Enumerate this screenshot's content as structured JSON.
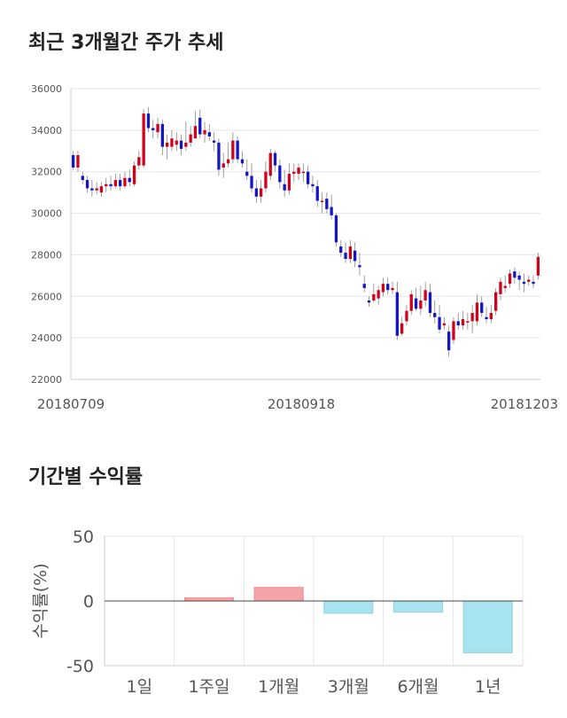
{
  "titles": {
    "price_trend": "최근 3개월간 주가 추세",
    "period_return": "기간별 수익률"
  },
  "colors": {
    "up": "#d0021b",
    "down": "#1414c8",
    "bar_positive": "#f4a3a8",
    "bar_negative": "#a8e4f0",
    "grid": "#e6e6e6"
  },
  "chart_data": [
    {
      "type": "candlestick",
      "title": "최근 3개월간 주가 추세",
      "ylim": [
        22000,
        36000
      ],
      "y_ticks": [
        "36000",
        "34000",
        "32000",
        "30000",
        "28000",
        "26000",
        "24000",
        "22000"
      ],
      "x_tick_labels": [
        "20180709",
        "20180918",
        "20181203"
      ],
      "grid": true,
      "candles": [
        [
          32800,
          32200,
          33000,
          32100
        ],
        [
          32200,
          32800,
          33000,
          32000
        ],
        [
          31800,
          31600,
          32000,
          31400
        ],
        [
          31600,
          31200,
          31800,
          31000
        ],
        [
          31200,
          31100,
          31600,
          30800
        ],
        [
          31100,
          31200,
          31500,
          30900
        ],
        [
          31000,
          31300,
          31500,
          30800
        ],
        [
          31300,
          31400,
          31700,
          31000
        ],
        [
          31400,
          31300,
          31800,
          31100
        ],
        [
          31300,
          31600,
          31900,
          31200
        ],
        [
          31600,
          31300,
          31900,
          31100
        ],
        [
          31300,
          31700,
          32000,
          31200
        ],
        [
          31700,
          31500,
          32100,
          31300
        ],
        [
          31400,
          32300,
          32500,
          31300
        ],
        [
          32300,
          32700,
          33000,
          32100
        ],
        [
          32300,
          34800,
          35000,
          32200
        ],
        [
          34800,
          34100,
          35100,
          33900
        ],
        [
          34100,
          34000,
          34500,
          33600
        ],
        [
          33900,
          34300,
          34600,
          33600
        ],
        [
          34300,
          33200,
          34500,
          32800
        ],
        [
          33200,
          33400,
          33800,
          32600
        ],
        [
          33200,
          33600,
          34000,
          33000
        ],
        [
          33300,
          33500,
          33900,
          33000
        ],
        [
          33500,
          33100,
          33800,
          32800
        ],
        [
          33200,
          33400,
          34400,
          33000
        ],
        [
          33400,
          33800,
          34200,
          33200
        ],
        [
          33600,
          34200,
          34900,
          33600
        ],
        [
          34600,
          33800,
          35000,
          33600
        ],
        [
          33800,
          34000,
          34400,
          33400
        ],
        [
          33900,
          33700,
          34300,
          33500
        ],
        [
          33500,
          33400,
          33900,
          33000
        ],
        [
          33400,
          32100,
          33600,
          31800
        ],
        [
          32200,
          32400,
          32900,
          31700
        ],
        [
          32400,
          32600,
          33400,
          32200
        ],
        [
          32600,
          33500,
          33900,
          32400
        ],
        [
          33500,
          32600,
          33700,
          32400
        ],
        [
          32600,
          32400,
          33000,
          32200
        ],
        [
          32000,
          31800,
          32600,
          31600
        ],
        [
          31800,
          31200,
          32400,
          31000
        ],
        [
          31200,
          30800,
          31600,
          30500
        ],
        [
          30800,
          31200,
          31600,
          30500
        ],
        [
          31200,
          32000,
          32500,
          31000
        ],
        [
          31800,
          32900,
          33100,
          31600
        ],
        [
          32900,
          32300,
          33000,
          32000
        ],
        [
          32300,
          31500,
          32600,
          31200
        ],
        [
          31400,
          31100,
          32100,
          30800
        ],
        [
          31100,
          31900,
          32400,
          30900
        ],
        [
          31900,
          32000,
          32400,
          31500
        ],
        [
          31900,
          32200,
          32400,
          31600
        ],
        [
          32000,
          32000,
          32400,
          31500
        ],
        [
          32000,
          31400,
          32300,
          31200
        ],
        [
          31400,
          31300,
          31800,
          31000
        ],
        [
          31300,
          30600,
          31600,
          30300
        ],
        [
          30600,
          30600,
          31000,
          30000
        ],
        [
          30700,
          30200,
          31000,
          30000
        ],
        [
          30300,
          29900,
          30900,
          29700
        ],
        [
          29900,
          28600,
          30000,
          28400
        ],
        [
          28400,
          28100,
          28700,
          27900
        ],
        [
          28100,
          27800,
          28600,
          27600
        ],
        [
          27800,
          28400,
          28700,
          27600
        ],
        [
          28200,
          27700,
          28600,
          27400
        ],
        [
          27500,
          27400,
          28100,
          27000
        ],
        [
          26600,
          26400,
          27000,
          26200
        ],
        [
          25800,
          25700,
          26000,
          25500
        ],
        [
          25800,
          26100,
          26600,
          25700
        ],
        [
          25900,
          26300,
          26500,
          25600
        ],
        [
          26200,
          26600,
          26900,
          26000
        ],
        [
          26600,
          26300,
          26900,
          26100
        ],
        [
          26300,
          26400,
          26700,
          26100
        ],
        [
          26200,
          24100,
          26700,
          23900
        ],
        [
          24200,
          24700,
          25000,
          24100
        ],
        [
          24800,
          25300,
          25600,
          24600
        ],
        [
          25300,
          26100,
          26300,
          25100
        ],
        [
          25900,
          25400,
          26400,
          25300
        ],
        [
          25400,
          25800,
          26500,
          25100
        ],
        [
          25800,
          26300,
          26700,
          25500
        ],
        [
          26200,
          25200,
          26600,
          25000
        ],
        [
          25200,
          25000,
          25800,
          24700
        ],
        [
          25000,
          24400,
          25600,
          24200
        ],
        [
          24600,
          24700,
          25000,
          24400
        ],
        [
          24300,
          23400,
          24600,
          23100
        ],
        [
          23900,
          24800,
          25000,
          23700
        ],
        [
          24800,
          24600,
          25200,
          24400
        ],
        [
          24600,
          24900,
          25300,
          24400
        ],
        [
          24800,
          24800,
          25200,
          24400
        ],
        [
          24800,
          25200,
          25600,
          24200
        ],
        [
          24800,
          25700,
          26100,
          24600
        ],
        [
          25700,
          25200,
          26000,
          25000
        ],
        [
          25000,
          24900,
          25500,
          24700
        ],
        [
          24900,
          25200,
          25600,
          24700
        ],
        [
          25300,
          26200,
          26400,
          25100
        ],
        [
          26100,
          26700,
          26900,
          25800
        ],
        [
          26400,
          26500,
          27000,
          26200
        ],
        [
          26600,
          27100,
          27300,
          26400
        ],
        [
          27200,
          26900,
          27400,
          26600
        ],
        [
          27000,
          26800,
          27200,
          26300
        ],
        [
          26700,
          26600,
          27100,
          26200
        ],
        [
          26700,
          26800,
          27000,
          26500
        ],
        [
          26700,
          26600,
          27000,
          26400
        ],
        [
          27000,
          27900,
          28100,
          26800
        ]
      ]
    },
    {
      "type": "bar",
      "title": "기간별 수익률",
      "ylabel": "수익률(%)",
      "ylim": [
        -50,
        50
      ],
      "y_ticks": [
        "50",
        "0",
        "-50"
      ],
      "categories": [
        "1일",
        "1주일",
        "1개월",
        "3개월",
        "6개월",
        "1년"
      ],
      "values": [
        0,
        2.5,
        10.5,
        -9.5,
        -8.5,
        -40
      ],
      "grid": true
    }
  ]
}
